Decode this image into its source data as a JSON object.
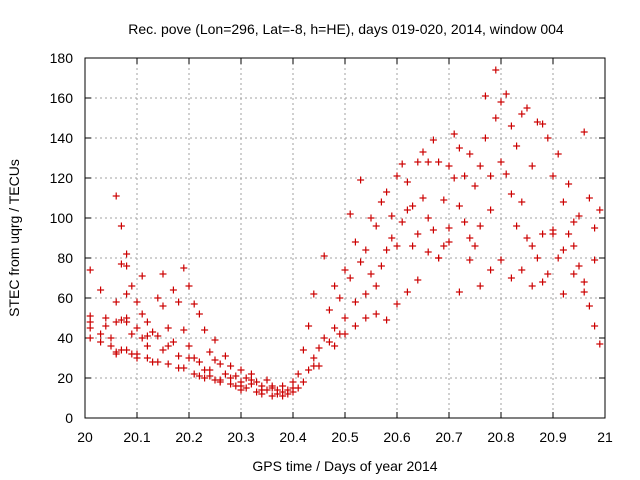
{
  "chart_data": {
    "type": "scatter",
    "title": "Rec. pove (Lon=296, Lat=-8, h=HE), days 019-020, 2014, window 004",
    "xlabel": "GPS time / Days of year 2014",
    "ylabel": "STEC from uqrg / TECUs",
    "xlim": [
      20,
      21
    ],
    "ylim": [
      0,
      180
    ],
    "xticks": [
      "20",
      "20.1",
      "20.2",
      "20.3",
      "20.4",
      "20.5",
      "20.6",
      "20.7",
      "20.8",
      "20.9",
      "21"
    ],
    "yticks": [
      "0",
      "20",
      "40",
      "60",
      "80",
      "100",
      "120",
      "140",
      "160",
      "180"
    ],
    "grid": true,
    "marker": "+",
    "color": "#cc0000",
    "series": [
      {
        "points": [
          [
            20.01,
            45
          ],
          [
            20.01,
            40
          ],
          [
            20.01,
            48
          ],
          [
            20.01,
            51
          ],
          [
            20.01,
            74
          ],
          [
            20.03,
            64
          ],
          [
            20.03,
            42
          ],
          [
            20.03,
            38
          ],
          [
            20.04,
            50
          ],
          [
            20.04,
            46
          ],
          [
            20.05,
            40
          ],
          [
            20.05,
            36
          ],
          [
            20.06,
            111
          ],
          [
            20.06,
            58
          ],
          [
            20.06,
            48
          ],
          [
            20.06,
            33
          ],
          [
            20.07,
            96
          ],
          [
            20.07,
            77
          ],
          [
            20.07,
            49
          ],
          [
            20.07,
            34
          ],
          [
            20.08,
            82
          ],
          [
            20.08,
            76
          ],
          [
            20.08,
            62
          ],
          [
            20.08,
            50
          ],
          [
            20.08,
            34
          ],
          [
            20.09,
            66
          ],
          [
            20.09,
            42
          ],
          [
            20.09,
            32
          ],
          [
            20.1,
            58
          ],
          [
            20.1,
            45
          ],
          [
            20.1,
            32
          ],
          [
            20.11,
            71
          ],
          [
            20.11,
            52
          ],
          [
            20.11,
            40
          ],
          [
            20.12,
            48
          ],
          [
            20.12,
            36
          ],
          [
            20.12,
            30
          ],
          [
            20.13,
            43
          ],
          [
            20.13,
            28
          ],
          [
            20.14,
            60
          ],
          [
            20.14,
            41
          ],
          [
            20.15,
            72
          ],
          [
            20.15,
            56
          ],
          [
            20.15,
            34
          ],
          [
            20.16,
            45
          ],
          [
            20.16,
            27
          ],
          [
            20.17,
            64
          ],
          [
            20.17,
            38
          ],
          [
            20.18,
            58
          ],
          [
            20.18,
            31
          ],
          [
            20.19,
            75
          ],
          [
            20.19,
            44
          ],
          [
            20.19,
            25
          ],
          [
            20.2,
            66
          ],
          [
            20.2,
            36
          ],
          [
            20.21,
            57
          ],
          [
            20.21,
            30
          ],
          [
            20.21,
            22
          ],
          [
            20.22,
            52
          ],
          [
            20.22,
            28
          ],
          [
            20.23,
            44
          ],
          [
            20.23,
            24
          ],
          [
            20.23,
            20
          ],
          [
            20.24,
            33
          ],
          [
            20.24,
            21
          ],
          [
            20.25,
            39
          ],
          [
            20.25,
            29
          ],
          [
            20.25,
            19
          ],
          [
            20.26,
            27
          ],
          [
            20.26,
            18
          ],
          [
            20.27,
            31
          ],
          [
            20.27,
            22
          ],
          [
            20.28,
            26
          ],
          [
            20.28,
            17
          ],
          [
            20.29,
            21
          ],
          [
            20.29,
            16
          ],
          [
            20.3,
            24
          ],
          [
            20.3,
            18
          ],
          [
            20.3,
            14
          ],
          [
            20.31,
            20
          ],
          [
            20.31,
            15
          ],
          [
            20.32,
            22
          ],
          [
            20.32,
            17
          ],
          [
            20.33,
            18
          ],
          [
            20.33,
            13
          ],
          [
            20.34,
            16
          ],
          [
            20.34,
            12
          ],
          [
            20.35,
            19
          ],
          [
            20.35,
            14
          ],
          [
            20.36,
            15
          ],
          [
            20.36,
            11
          ],
          [
            20.37,
            14
          ],
          [
            20.37,
            12
          ],
          [
            20.38,
            16
          ],
          [
            20.38,
            11
          ],
          [
            20.39,
            14
          ],
          [
            20.39,
            12
          ],
          [
            20.4,
            18
          ],
          [
            20.4,
            13
          ],
          [
            20.41,
            22
          ],
          [
            20.41,
            15
          ],
          [
            20.42,
            34
          ],
          [
            20.42,
            18
          ],
          [
            20.43,
            46
          ],
          [
            20.43,
            24
          ],
          [
            20.44,
            62
          ],
          [
            20.44,
            30
          ],
          [
            20.45,
            35
          ],
          [
            20.45,
            26
          ],
          [
            20.46,
            81
          ],
          [
            20.46,
            40
          ],
          [
            20.47,
            54
          ],
          [
            20.47,
            38
          ],
          [
            20.48,
            66
          ],
          [
            20.48,
            45
          ],
          [
            20.49,
            60
          ],
          [
            20.49,
            42
          ],
          [
            20.5,
            74
          ],
          [
            20.5,
            50
          ],
          [
            20.51,
            102
          ],
          [
            20.51,
            70
          ],
          [
            20.52,
            88
          ],
          [
            20.52,
            58
          ],
          [
            20.53,
            119
          ],
          [
            20.53,
            78
          ],
          [
            20.54,
            84
          ],
          [
            20.54,
            62
          ],
          [
            20.55,
            100
          ],
          [
            20.55,
            72
          ],
          [
            20.56,
            96
          ],
          [
            20.56,
            66
          ],
          [
            20.57,
            108
          ],
          [
            20.57,
            76
          ],
          [
            20.58,
            113
          ],
          [
            20.58,
            84
          ],
          [
            20.59,
            101
          ],
          [
            20.59,
            90
          ],
          [
            20.6,
            121
          ],
          [
            20.6,
            86
          ],
          [
            20.61,
            127
          ],
          [
            20.61,
            98
          ],
          [
            20.62,
            118
          ],
          [
            20.62,
            104
          ],
          [
            20.63,
            106
          ],
          [
            20.63,
            86
          ],
          [
            20.64,
            128
          ],
          [
            20.64,
            92
          ],
          [
            20.65,
            133
          ],
          [
            20.65,
            110
          ],
          [
            20.66,
            128
          ],
          [
            20.66,
            100
          ],
          [
            20.67,
            139
          ],
          [
            20.67,
            94
          ],
          [
            20.68,
            128
          ],
          [
            20.68,
            80
          ],
          [
            20.69,
            109
          ],
          [
            20.69,
            86
          ],
          [
            20.7,
            126
          ],
          [
            20.7,
            95
          ],
          [
            20.71,
            142
          ],
          [
            20.71,
            120
          ],
          [
            20.72,
            135
          ],
          [
            20.72,
            106
          ],
          [
            20.73,
            121
          ],
          [
            20.73,
            98
          ],
          [
            20.74,
            132
          ],
          [
            20.74,
            90
          ],
          [
            20.75,
            116
          ],
          [
            20.75,
            86
          ],
          [
            20.76,
            126
          ],
          [
            20.76,
            96
          ],
          [
            20.77,
            161
          ],
          [
            20.77,
            140
          ],
          [
            20.78,
            121
          ],
          [
            20.78,
            104
          ],
          [
            20.79,
            174
          ],
          [
            20.79,
            150
          ],
          [
            20.8,
            158
          ],
          [
            20.8,
            128
          ],
          [
            20.81,
            162
          ],
          [
            20.81,
            122
          ],
          [
            20.82,
            146
          ],
          [
            20.82,
            112
          ],
          [
            20.83,
            136
          ],
          [
            20.83,
            96
          ],
          [
            20.84,
            152
          ],
          [
            20.84,
            108
          ],
          [
            20.85,
            155
          ],
          [
            20.85,
            90
          ],
          [
            20.86,
            126
          ],
          [
            20.86,
            86
          ],
          [
            20.87,
            148
          ],
          [
            20.87,
            80
          ],
          [
            20.88,
            147
          ],
          [
            20.88,
            92
          ],
          [
            20.89,
            140
          ],
          [
            20.89,
            72
          ],
          [
            20.9,
            121
          ],
          [
            20.9,
            94
          ],
          [
            20.91,
            132
          ],
          [
            20.91,
            80
          ],
          [
            20.92,
            108
          ],
          [
            20.92,
            84
          ],
          [
            20.93,
            117
          ],
          [
            20.93,
            92
          ],
          [
            20.94,
            98
          ],
          [
            20.94,
            72
          ],
          [
            20.95,
            101
          ],
          [
            20.95,
            76
          ],
          [
            20.96,
            143
          ],
          [
            20.96,
            68
          ],
          [
            20.97,
            110
          ],
          [
            20.97,
            56
          ],
          [
            20.98,
            95
          ],
          [
            20.98,
            46
          ],
          [
            20.99,
            104
          ],
          [
            20.99,
            37
          ],
          [
            20.08,
            48
          ],
          [
            20.12,
            41
          ],
          [
            20.16,
            36
          ],
          [
            20.2,
            30
          ],
          [
            20.24,
            24
          ],
          [
            20.28,
            20
          ],
          [
            20.32,
            19
          ],
          [
            20.36,
            16
          ],
          [
            20.4,
            15
          ],
          [
            20.44,
            26
          ],
          [
            20.48,
            36
          ],
          [
            20.52,
            46
          ],
          [
            20.56,
            52
          ],
          [
            20.6,
            57
          ],
          [
            20.64,
            69
          ],
          [
            20.68,
            80
          ],
          [
            20.72,
            63
          ],
          [
            20.76,
            66
          ],
          [
            20.8,
            79
          ],
          [
            20.84,
            74
          ],
          [
            20.88,
            68
          ],
          [
            20.92,
            62
          ],
          [
            20.96,
            63
          ],
          [
            20.5,
            42
          ],
          [
            20.54,
            50
          ],
          [
            20.58,
            49
          ],
          [
            20.62,
            63
          ],
          [
            20.66,
            83
          ],
          [
            20.7,
            88
          ],
          [
            20.74,
            79
          ],
          [
            20.78,
            74
          ],
          [
            20.82,
            70
          ],
          [
            20.86,
            66
          ],
          [
            20.9,
            92
          ],
          [
            20.94,
            86
          ],
          [
            20.98,
            79
          ],
          [
            20.06,
            32
          ],
          [
            20.1,
            30
          ],
          [
            20.14,
            28
          ],
          [
            20.18,
            25
          ],
          [
            20.22,
            21
          ],
          [
            20.26,
            19
          ],
          [
            20.3,
            16
          ],
          [
            20.34,
            14
          ],
          [
            20.38,
            13
          ]
        ]
      }
    ]
  }
}
